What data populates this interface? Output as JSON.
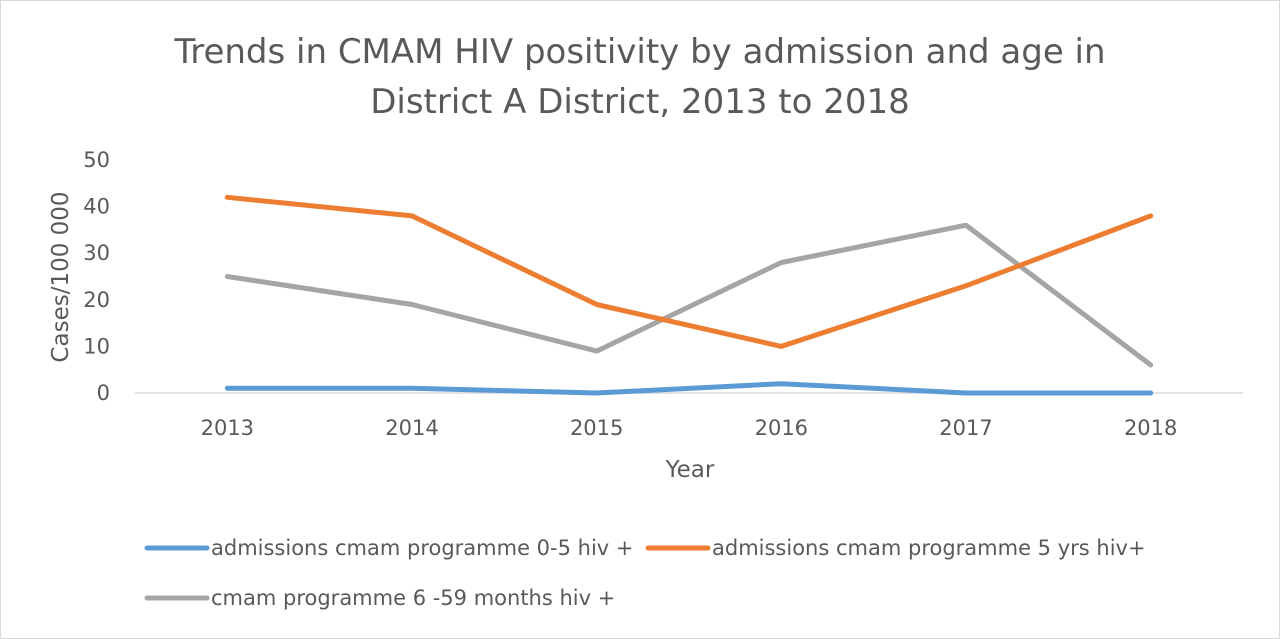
{
  "chart_data": {
    "type": "line",
    "title_lines": [
      "Trends in CMAM HIV positivity by admission and age in",
      "District A District, 2013 to 2018"
    ],
    "xlabel": "Year",
    "ylabel": "Cases/100 000",
    "categories": [
      "2013",
      "2014",
      "2015",
      "2016",
      "2017",
      "2018"
    ],
    "ylim": [
      0,
      50
    ],
    "yticks": [
      "0",
      "10",
      "20",
      "30",
      "40",
      "50"
    ],
    "grid": false,
    "legend_position": "bottom",
    "series": [
      {
        "name": "admissions cmam programme 0-5 hiv +",
        "color": "#5b9bd5",
        "values": [
          1,
          1,
          0,
          2,
          0,
          0
        ]
      },
      {
        "name": "admissions cmam programme 5 yrs hiv+",
        "color": "#ed7d31",
        "values": [
          42,
          38,
          19,
          10,
          23,
          38
        ]
      },
      {
        "name": "cmam programme 6 -59 months hiv +",
        "color": "#a5a5a5",
        "values": [
          25,
          19,
          9,
          28,
          36,
          6
        ]
      }
    ]
  }
}
